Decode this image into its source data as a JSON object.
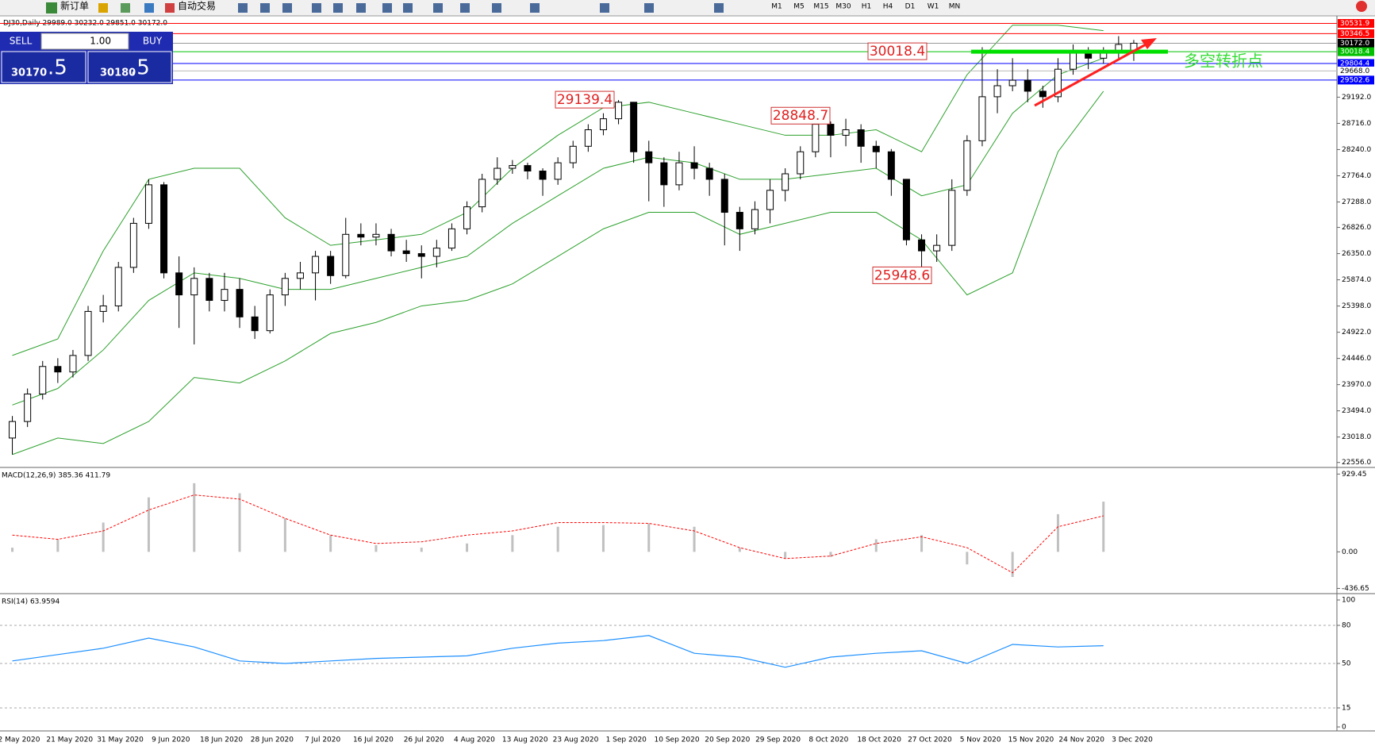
{
  "toolbar": {
    "new_order": "新订单",
    "auto_trading": "自动交易",
    "timeframes": [
      "M1",
      "M5",
      "M15",
      "M30",
      "H1",
      "H4",
      "D1",
      "W1",
      "MN"
    ]
  },
  "symbol_info": "DJ30,Daily  29989.0 30232.0 29851.0 30172.0",
  "trade_panel": {
    "sell": "SELL",
    "lot": "1.00",
    "buy": "BUY",
    "bid_main": "30170",
    "bid_frac": ".5",
    "ask_main": "30180",
    "ask_frac": ".5"
  },
  "chart_data": [
    {
      "type": "candlestick",
      "ylim": [
        22480,
        30640
      ],
      "yticks": [
        {
          "value": 29192,
          "label": "29192.0"
        },
        {
          "value": 28716,
          "label": "28716.0"
        },
        {
          "value": 28240,
          "label": "28240.0"
        },
        {
          "value": 27764,
          "label": "27764.0"
        },
        {
          "value": 27288,
          "label": "27288.0"
        },
        {
          "value": 26826,
          "label": "26826.0"
        },
        {
          "value": 26350,
          "label": "26350.0"
        },
        {
          "value": 25874,
          "label": "25874.0"
        },
        {
          "value": 25398,
          "label": "25398.0"
        },
        {
          "value": 24922,
          "label": "24922.0"
        },
        {
          "value": 24446,
          "label": "24446.0"
        },
        {
          "value": 23970,
          "label": "23970.0"
        },
        {
          "value": 23494,
          "label": "23494.0"
        },
        {
          "value": 23018,
          "label": "23018.0"
        },
        {
          "value": 22556,
          "label": "22556.0"
        }
      ],
      "x_labels": [
        "2 May 2020",
        "21 May 2020",
        "31 May 2020",
        "9 Jun 2020",
        "18 Jun 2020",
        "28 Jun 2020",
        "7 Jul 2020",
        "16 Jul 2020",
        "26 Jul 2020",
        "4 Aug 2020",
        "13 Aug 2020",
        "23 Aug 2020",
        "1 Sep 2020",
        "10 Sep 2020",
        "20 Sep 2020",
        "29 Sep 2020",
        "8 Oct 2020",
        "18 Oct 2020",
        "27 Oct 2020",
        "5 Nov 2020",
        "15 Nov 2020",
        "24 Nov 2020",
        "3 Dec 2020"
      ],
      "ohlc": [
        [
          23000,
          23400,
          22700,
          23300
        ],
        [
          23300,
          23900,
          23200,
          23800
        ],
        [
          23800,
          24400,
          23700,
          24300
        ],
        [
          24300,
          24450,
          24000,
          24200
        ],
        [
          24200,
          24600,
          24100,
          24500
        ],
        [
          24500,
          25400,
          24400,
          25300
        ],
        [
          25300,
          25600,
          25100,
          25400
        ],
        [
          25400,
          26200,
          25300,
          26100
        ],
        [
          26100,
          27000,
          26000,
          26900
        ],
        [
          26900,
          27700,
          26800,
          27600
        ],
        [
          27600,
          27650,
          25900,
          26000
        ],
        [
          26000,
          26300,
          25000,
          25600
        ],
        [
          25600,
          26100,
          24700,
          25900
        ],
        [
          25900,
          26000,
          25300,
          25500
        ],
        [
          25500,
          26000,
          25300,
          25700
        ],
        [
          25700,
          25900,
          25000,
          25200
        ],
        [
          25200,
          25400,
          24800,
          24950
        ],
        [
          24950,
          25700,
          24900,
          25600
        ],
        [
          25600,
          26000,
          25400,
          25900
        ],
        [
          25900,
          26200,
          25700,
          26000
        ],
        [
          26000,
          26400,
          25500,
          26300
        ],
        [
          26300,
          26400,
          25800,
          25950
        ],
        [
          25950,
          27000,
          25900,
          26700
        ],
        [
          26700,
          26900,
          26500,
          26650
        ],
        [
          26650,
          26900,
          26500,
          26700
        ],
        [
          26700,
          26800,
          26300,
          26400
        ],
        [
          26400,
          26600,
          26200,
          26350
        ],
        [
          26350,
          26500,
          25900,
          26300
        ],
        [
          26300,
          26600,
          26100,
          26450
        ],
        [
          26450,
          26900,
          26400,
          26800
        ],
        [
          26800,
          27300,
          26700,
          27200
        ],
        [
          27200,
          27800,
          27100,
          27700
        ],
        [
          27700,
          28100,
          27600,
          27900
        ],
        [
          27900,
          28050,
          27800,
          27950
        ],
        [
          27950,
          28000,
          27700,
          27850
        ],
        [
          27850,
          27900,
          27400,
          27700
        ],
        [
          27700,
          28100,
          27600,
          28000
        ],
        [
          28000,
          28400,
          27900,
          28300
        ],
        [
          28300,
          28700,
          28200,
          28600
        ],
        [
          28600,
          28900,
          28500,
          28800
        ],
        [
          28800,
          29139.4,
          28700,
          29100
        ],
        [
          29100,
          29100,
          28000,
          28200
        ],
        [
          28200,
          28400,
          27300,
          28000
        ],
        [
          28000,
          28100,
          27200,
          27600
        ],
        [
          27600,
          28200,
          27500,
          28000
        ],
        [
          28000,
          28300,
          27700,
          27900
        ],
        [
          27900,
          28000,
          27400,
          27700
        ],
        [
          27700,
          27800,
          26500,
          27100
        ],
        [
          27100,
          27200,
          26400,
          26800
        ],
        [
          26800,
          27300,
          26700,
          27150
        ],
        [
          27150,
          27700,
          26900,
          27500
        ],
        [
          27500,
          27900,
          27300,
          27800
        ],
        [
          27800,
          28300,
          27700,
          28200
        ],
        [
          28200,
          28848.7,
          28100,
          28700
        ],
        [
          28700,
          28750,
          28100,
          28500
        ],
        [
          28500,
          28800,
          28300,
          28600
        ],
        [
          28600,
          28700,
          28000,
          28300
        ],
        [
          28300,
          28400,
          27900,
          28200
        ],
        [
          28200,
          28250,
          27400,
          27700
        ],
        [
          27700,
          27700,
          26500,
          26600
        ],
        [
          26600,
          26700,
          25948.6,
          26400
        ],
        [
          26400,
          26700,
          26200,
          26500
        ],
        [
          26500,
          27700,
          26400,
          27500
        ],
        [
          27500,
          28500,
          27400,
          28400
        ],
        [
          28400,
          30100,
          28300,
          29200
        ],
        [
          29200,
          29700,
          28900,
          29400
        ],
        [
          29400,
          29900,
          29300,
          29500
        ],
        [
          29500,
          29700,
          29100,
          29300
        ],
        [
          29300,
          29400,
          29000,
          29200
        ],
        [
          29200,
          29900,
          29100,
          29700
        ],
        [
          29700,
          30150,
          29600,
          30000
        ],
        [
          30000,
          30100,
          29700,
          29900
        ],
        [
          29900,
          30100,
          29800,
          30000
        ],
        [
          30000,
          30300,
          29900,
          30150
        ],
        [
          29989.0,
          30232.0,
          29851.0,
          30172.0
        ]
      ],
      "bands": [
        {
          "color": "#2ca02c",
          "values": [
            24500,
            24800,
            26400,
            27700,
            27900,
            27900,
            27000,
            26500,
            26600,
            26700,
            27100,
            27900,
            28500,
            29000,
            29100,
            28900,
            28700,
            28500,
            28500,
            28600,
            28200,
            29600,
            30500,
            30500,
            30400
          ]
        },
        {
          "color": "#2ca02c",
          "values": [
            23600,
            23900,
            24600,
            25500,
            26000,
            25900,
            25700,
            25700,
            25900,
            26100,
            26300,
            26900,
            27400,
            27900,
            28100,
            28000,
            27700,
            27700,
            27800,
            27900,
            27400,
            27600,
            28900,
            29600,
            29900
          ]
        },
        {
          "color": "#2ca02c",
          "values": [
            22700,
            23000,
            22900,
            23300,
            24100,
            24000,
            24400,
            24900,
            25100,
            25400,
            25500,
            25800,
            26300,
            26800,
            27100,
            27100,
            26700,
            26900,
            27100,
            27100,
            26600,
            25600,
            26000,
            28200,
            29300
          ]
        }
      ],
      "levels": [
        {
          "value": 30531.9,
          "label": "30531.9",
          "color": "#ff0000"
        },
        {
          "value": 30346.5,
          "label": "30346.5",
          "color": "#ff0000"
        },
        {
          "value": 30172.0,
          "label": "30172.0",
          "color": "#000000"
        },
        {
          "value": 30018.4,
          "label": "30018.4",
          "color": "#00c000"
        },
        {
          "value": 29804.4,
          "label": "29804.4",
          "color": "#0000ff"
        },
        {
          "value": 29668.0,
          "label": "29668.0",
          "color": "#ffffff"
        },
        {
          "value": 29502.6,
          "label": "29502.6",
          "color": "#0000ff"
        }
      ],
      "annotations": [
        {
          "label": "30018.4",
          "value": 30018.4
        },
        {
          "label": "29139.4",
          "value": 29139.4
        },
        {
          "label": "28848.7",
          "value": 28848.7
        },
        {
          "label": "25948.6",
          "value": 25948.6
        }
      ],
      "note": "多空转折点"
    },
    {
      "type": "macd",
      "title": "MACD(12,26,9) 385.36 411.79",
      "ylim": [
        -480,
        980
      ],
      "yticks": [
        929.45,
        {
          "value": 0,
          "label": "0.00"
        },
        -436.65
      ],
      "series": [
        {
          "name": "histogram",
          "color": "#c0c0c0",
          "values": [
            50,
            150,
            350,
            650,
            820,
            700,
            400,
            200,
            80,
            50,
            100,
            200,
            300,
            320,
            340,
            300,
            50,
            -80,
            -60,
            150,
            200,
            -150,
            -300,
            450,
            600
          ]
        },
        {
          "name": "signal",
          "color": "#ff0000",
          "values": [
            200,
            150,
            250,
            500,
            680,
            630,
            400,
            200,
            100,
            120,
            200,
            250,
            350,
            350,
            340,
            250,
            50,
            -80,
            -50,
            100,
            180,
            50,
            -250,
            300,
            430
          ]
        }
      ]
    },
    {
      "type": "rsi",
      "title": "RSI(14) 63.9594",
      "ylim": [
        0,
        100
      ],
      "yticks": [
        100,
        80,
        50,
        15,
        0
      ],
      "color": "#1e90ff",
      "values": [
        52,
        57,
        62,
        70,
        63,
        52,
        50,
        52,
        54,
        55,
        56,
        62,
        66,
        68,
        72,
        58,
        55,
        47,
        55,
        58,
        60,
        50,
        65,
        63,
        64
      ]
    }
  ]
}
